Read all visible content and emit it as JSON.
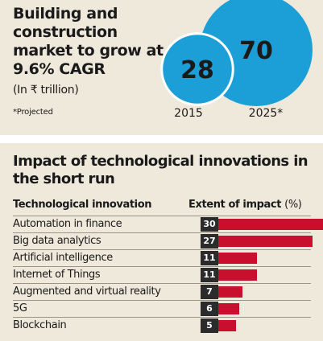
{
  "chart_data": [
    {
      "type": "bubble",
      "title": "Building and construction market to grow at 9.6% CAGR",
      "unit": "(In ₹ trillion)",
      "note": "*Projected",
      "categories": [
        "2015",
        "2025*"
      ],
      "values": [
        28,
        70
      ],
      "color": "#1b9fd6"
    },
    {
      "type": "bar",
      "orientation": "horizontal",
      "title": "Impact of technological innovations in the short run",
      "column_headers": [
        "Technological innovation",
        "Extent of impact",
        "(%)"
      ],
      "categories": [
        "Automation in finance",
        "Big data analytics",
        "Artificial intelligence",
        "Internet of Things",
        "Augmented and virtual reality",
        "5G",
        "Blockchain"
      ],
      "values": [
        30,
        27,
        11,
        11,
        7,
        6,
        5
      ],
      "bar_color": "#c8102e"
    }
  ]
}
